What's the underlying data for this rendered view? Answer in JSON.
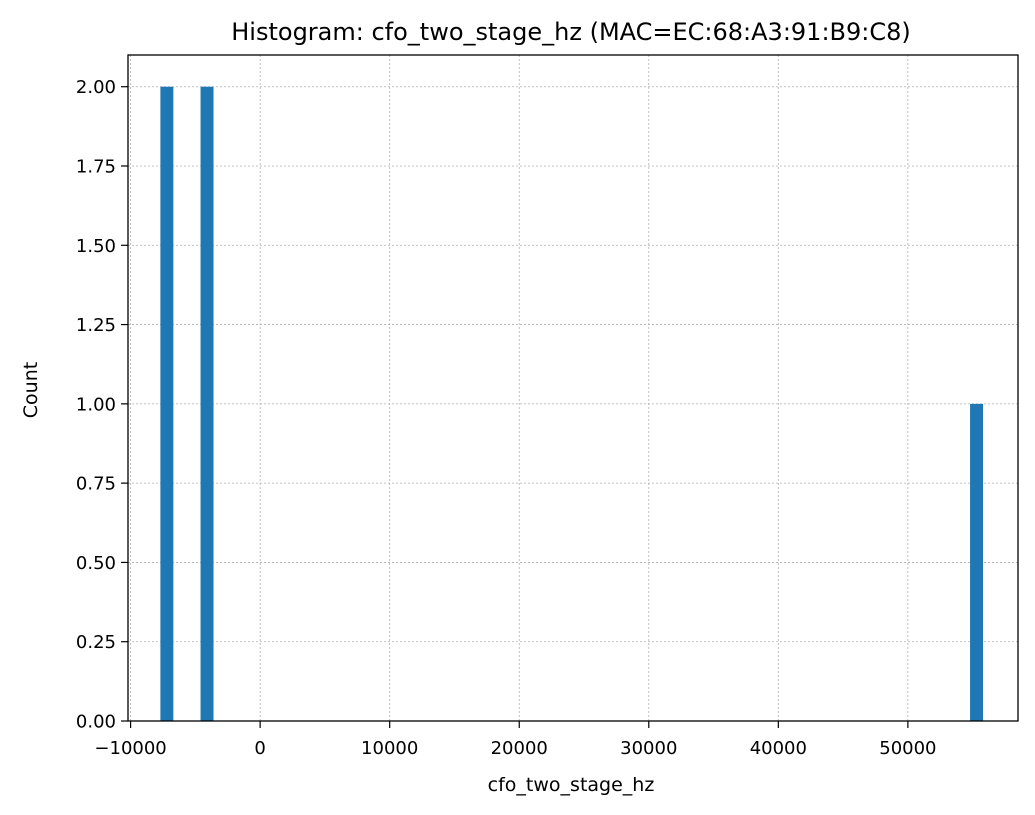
{
  "chart_data": {
    "type": "bar",
    "title": "Histogram: cfo_two_stage_hz (MAC=EC:68:A3:91:B9:C8)",
    "xlabel": "cfo_two_stage_hz",
    "ylabel": "Count",
    "xlim": [
      -10200,
      58500
    ],
    "ylim": [
      0,
      2.1
    ],
    "grid": true,
    "bar_color": "#1f77b4",
    "bin_width": 1000,
    "bins": [
      {
        "x": -7200,
        "count": 2
      },
      {
        "x": -4100,
        "count": 2
      },
      {
        "x": 55300,
        "count": 1
      }
    ],
    "x_ticks": [
      -10000,
      0,
      10000,
      20000,
      30000,
      40000,
      50000
    ],
    "x_tick_labels": [
      "−10000",
      "0",
      "10000",
      "20000",
      "30000",
      "40000",
      "50000"
    ],
    "y_ticks": [
      0,
      0.25,
      0.5,
      0.75,
      1.0,
      1.25,
      1.5,
      1.75,
      2.0
    ],
    "y_tick_labels": [
      "0.00",
      "0.25",
      "0.50",
      "0.75",
      "1.00",
      "1.25",
      "1.50",
      "1.75",
      "2.00"
    ]
  }
}
